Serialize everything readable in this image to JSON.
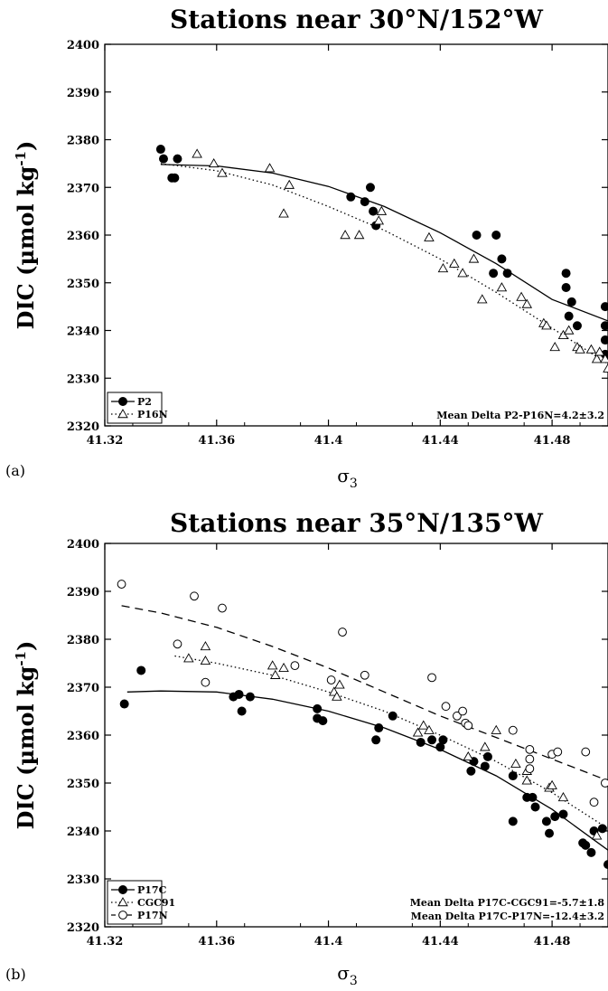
{
  "chart_data": [
    {
      "type": "scatter",
      "panel": "(a)",
      "title": "Stations near 30°N/152°W",
      "ylabel": "DIC (µmol kg⁻¹)",
      "ylabel_main": "DIC (µmol kg",
      "ylabel_sup": "-1",
      "ylabel_close": ")",
      "xlabel": "σ3",
      "xlabel_main": "σ",
      "xlabel_sub": "3",
      "xlim": [
        41.32,
        41.5
      ],
      "ylim": [
        2320,
        2400
      ],
      "xticks": [
        "41.32",
        "41.36",
        "41.4",
        "41.44",
        "41.48"
      ],
      "yticks": [
        "2320",
        "2330",
        "2340",
        "2350",
        "2360",
        "2370",
        "2380",
        "2390",
        "2400"
      ],
      "legend_position": "bottom-left",
      "annotations": [
        "Mean Delta P2-P16N=4.2±3.2"
      ],
      "series": [
        {
          "name": "P2",
          "marker": "filled-circle",
          "line": "solid",
          "points": [
            [
              41.34,
              2378
            ],
            [
              41.341,
              2376
            ],
            [
              41.344,
              2372
            ],
            [
              41.345,
              2372
            ],
            [
              41.346,
              2376
            ],
            [
              41.408,
              2368
            ],
            [
              41.413,
              2367
            ],
            [
              41.415,
              2370
            ],
            [
              41.416,
              2365
            ],
            [
              41.417,
              2362
            ],
            [
              41.453,
              2360
            ],
            [
              41.459,
              2352
            ],
            [
              41.46,
              2360
            ],
            [
              41.462,
              2355
            ],
            [
              41.464,
              2352
            ],
            [
              41.485,
              2352
            ],
            [
              41.485,
              2349
            ],
            [
              41.486,
              2343
            ],
            [
              41.487,
              2346
            ],
            [
              41.489,
              2341
            ],
            [
              41.499,
              2345
            ],
            [
              41.499,
              2341
            ],
            [
              41.499,
              2338
            ],
            [
              41.499,
              2335
            ]
          ],
          "curve": [
            [
              41.34,
              2374.8
            ],
            [
              41.36,
              2374.5
            ],
            [
              41.38,
              2373
            ],
            [
              41.4,
              2370.2
            ],
            [
              41.42,
              2366
            ],
            [
              41.44,
              2360.5
            ],
            [
              41.46,
              2354
            ],
            [
              41.48,
              2346.5
            ],
            [
              41.5,
              2342
            ]
          ]
        },
        {
          "name": "P16N",
          "marker": "open-triangle",
          "line": "dotted",
          "points": [
            [
              41.353,
              2377
            ],
            [
              41.359,
              2375
            ],
            [
              41.362,
              2373
            ],
            [
              41.379,
              2374
            ],
            [
              41.384,
              2364.5
            ],
            [
              41.386,
              2370.5
            ],
            [
              41.406,
              2360
            ],
            [
              41.411,
              2360
            ],
            [
              41.418,
              2363
            ],
            [
              41.419,
              2365
            ],
            [
              41.436,
              2359.5
            ],
            [
              41.441,
              2353
            ],
            [
              41.445,
              2354
            ],
            [
              41.448,
              2352
            ],
            [
              41.452,
              2355
            ],
            [
              41.455,
              2346.5
            ],
            [
              41.462,
              2349
            ],
            [
              41.469,
              2347
            ],
            [
              41.471,
              2345.5
            ],
            [
              41.477,
              2341.5
            ],
            [
              41.478,
              2341
            ],
            [
              41.481,
              2336.5
            ],
            [
              41.484,
              2339
            ],
            [
              41.486,
              2340
            ],
            [
              41.489,
              2336.5
            ],
            [
              41.49,
              2336
            ],
            [
              41.494,
              2336
            ],
            [
              41.496,
              2334
            ],
            [
              41.497,
              2335.5
            ],
            [
              41.499,
              2334
            ],
            [
              41.5,
              2332
            ]
          ],
          "curve": [
            [
              41.34,
              2375
            ],
            [
              41.36,
              2373.5
            ],
            [
              41.38,
              2370.5
            ],
            [
              41.4,
              2366
            ],
            [
              41.42,
              2361
            ],
            [
              41.44,
              2355
            ],
            [
              41.46,
              2348
            ],
            [
              41.48,
              2340.5
            ],
            [
              41.5,
              2333
            ]
          ]
        }
      ]
    },
    {
      "type": "scatter",
      "panel": "(b)",
      "title": "Stations near 35°N/135°W",
      "ylabel": "DIC (µmol kg⁻¹)",
      "ylabel_main": "DIC (µmol kg",
      "ylabel_sup": "-1",
      "ylabel_close": ")",
      "xlabel": "σ3",
      "xlabel_main": "σ",
      "xlabel_sub": "3",
      "xlim": [
        41.32,
        41.5
      ],
      "ylim": [
        2320,
        2400
      ],
      "xticks": [
        "41.32",
        "41.36",
        "41.4",
        "41.44",
        "41.48"
      ],
      "yticks": [
        "2320",
        "2330",
        "2340",
        "2350",
        "2360",
        "2370",
        "2380",
        "2390",
        "2400"
      ],
      "legend_position": "bottom-left",
      "annotations": [
        "Mean Delta P17C-CGC91=-5.7±1.8",
        "Mean Delta P17C-P17N=-12.4±3.2"
      ],
      "series": [
        {
          "name": "P17C",
          "marker": "filled-circle",
          "line": "solid",
          "points": [
            [
              41.327,
              2366.5
            ],
            [
              41.333,
              2373.5
            ],
            [
              41.366,
              2368
            ],
            [
              41.368,
              2368.5
            ],
            [
              41.369,
              2365
            ],
            [
              41.372,
              2368
            ],
            [
              41.396,
              2365.5
            ],
            [
              41.396,
              2363.5
            ],
            [
              41.398,
              2363
            ],
            [
              41.417,
              2359
            ],
            [
              41.418,
              2361.5
            ],
            [
              41.423,
              2364
            ],
            [
              41.433,
              2358.5
            ],
            [
              41.437,
              2359
            ],
            [
              41.44,
              2357.5
            ],
            [
              41.441,
              2359
            ],
            [
              41.451,
              2352.5
            ],
            [
              41.452,
              2354.5
            ],
            [
              41.456,
              2353.5
            ],
            [
              41.457,
              2355.5
            ],
            [
              41.466,
              2351.5
            ],
            [
              41.466,
              2342
            ],
            [
              41.471,
              2347
            ],
            [
              41.473,
              2347
            ],
            [
              41.474,
              2345
            ],
            [
              41.478,
              2342
            ],
            [
              41.479,
              2339.5
            ],
            [
              41.481,
              2343
            ],
            [
              41.484,
              2343.5
            ],
            [
              41.491,
              2337.5
            ],
            [
              41.492,
              2337
            ],
            [
              41.494,
              2335.5
            ],
            [
              41.495,
              2340
            ],
            [
              41.498,
              2340.5
            ],
            [
              41.5,
              2333
            ]
          ],
          "curve": [
            [
              41.328,
              2369
            ],
            [
              41.34,
              2369.2
            ],
            [
              41.36,
              2369
            ],
            [
              41.38,
              2367.5
            ],
            [
              41.4,
              2365
            ],
            [
              41.42,
              2361.5
            ],
            [
              41.44,
              2357
            ],
            [
              41.46,
              2351.5
            ],
            [
              41.48,
              2344.5
            ],
            [
              41.5,
              2336
            ]
          ]
        },
        {
          "name": "CGC91",
          "marker": "open-triangle",
          "line": "dotted",
          "points": [
            [
              41.35,
              2376
            ],
            [
              41.356,
              2378.5
            ],
            [
              41.356,
              2375.5
            ],
            [
              41.38,
              2374.5
            ],
            [
              41.381,
              2372.5
            ],
            [
              41.384,
              2374
            ],
            [
              41.402,
              2369
            ],
            [
              41.403,
              2368
            ],
            [
              41.404,
              2370.5
            ],
            [
              41.432,
              2360.5
            ],
            [
              41.434,
              2362
            ],
            [
              41.436,
              2361
            ],
            [
              41.45,
              2355.5
            ],
            [
              41.456,
              2357.5
            ],
            [
              41.46,
              2361
            ],
            [
              41.467,
              2354
            ],
            [
              41.471,
              2350.5
            ],
            [
              41.471,
              2352.5
            ],
            [
              41.479,
              2349
            ],
            [
              41.48,
              2349.5
            ],
            [
              41.484,
              2347
            ],
            [
              41.496,
              2339
            ]
          ],
          "curve": [
            [
              41.345,
              2376.5
            ],
            [
              41.36,
              2375
            ],
            [
              41.38,
              2372.5
            ],
            [
              41.4,
              2369
            ],
            [
              41.42,
              2365
            ],
            [
              41.44,
              2360
            ],
            [
              41.46,
              2354.5
            ],
            [
              41.48,
              2348
            ],
            [
              41.5,
              2340.5
            ]
          ]
        },
        {
          "name": "P17N",
          "marker": "open-circle",
          "line": "dashed",
          "points": [
            [
              41.326,
              2391.5
            ],
            [
              41.346,
              2379
            ],
            [
              41.352,
              2389
            ],
            [
              41.356,
              2371
            ],
            [
              41.362,
              2386.5
            ],
            [
              41.388,
              2374.5
            ],
            [
              41.401,
              2371.5
            ],
            [
              41.405,
              2381.5
            ],
            [
              41.413,
              2372.5
            ],
            [
              41.437,
              2372
            ],
            [
              41.442,
              2366
            ],
            [
              41.446,
              2364
            ],
            [
              41.448,
              2365
            ],
            [
              41.449,
              2362.5
            ],
            [
              41.45,
              2362
            ],
            [
              41.466,
              2361
            ],
            [
              41.472,
              2357
            ],
            [
              41.472,
              2355
            ],
            [
              41.472,
              2353
            ],
            [
              41.48,
              2356
            ],
            [
              41.482,
              2356.5
            ],
            [
              41.492,
              2356.5
            ],
            [
              41.495,
              2346
            ],
            [
              41.499,
              2350
            ]
          ],
          "curve": [
            [
              41.326,
              2387
            ],
            [
              41.34,
              2385.5
            ],
            [
              41.36,
              2382.5
            ],
            [
              41.38,
              2378.5
            ],
            [
              41.4,
              2374
            ],
            [
              41.42,
              2369
            ],
            [
              41.44,
              2364
            ],
            [
              41.46,
              2359.5
            ],
            [
              41.48,
              2355
            ],
            [
              41.5,
              2350.5
            ]
          ]
        }
      ]
    }
  ]
}
